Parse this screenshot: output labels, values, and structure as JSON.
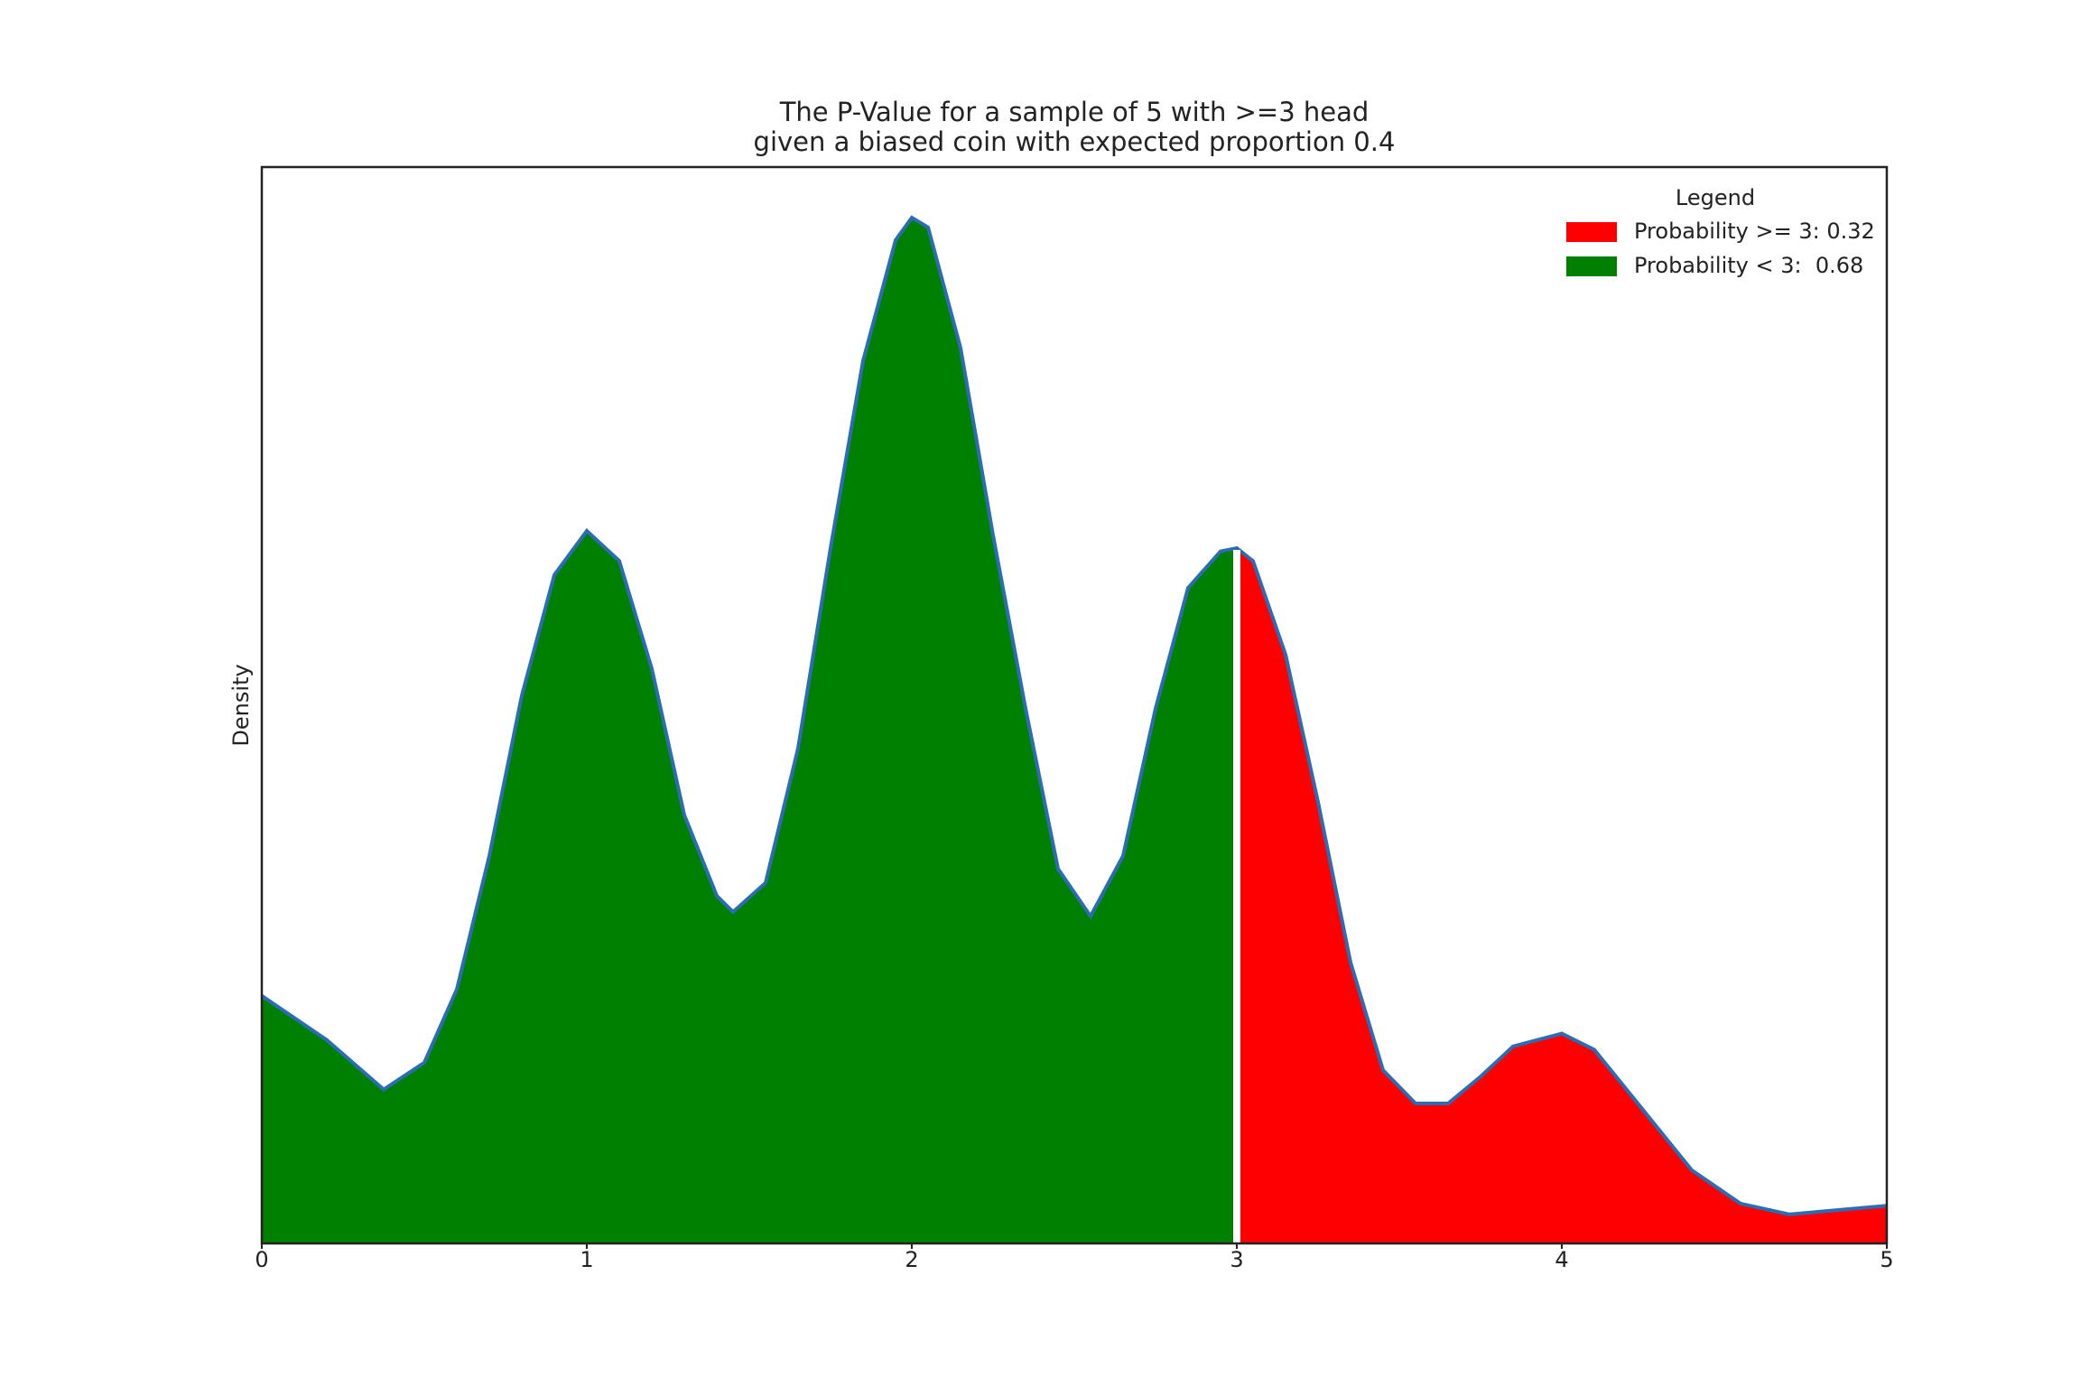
{
  "chart_data": {
    "type": "area",
    "title": [
      "The P-Value for a sample of 5 with >=3 head",
      "given a biased coin with expected proportion 0.4"
    ],
    "y_label": "Density",
    "legend_title": "Legend",
    "legend": "upper right",
    "threshold": 3,
    "line_color": "#2a6db5",
    "series": [
      {
        "name": "Probability >= 3: 0.32",
        "color": "#ff0000"
      },
      {
        "name": "Probability < 3:  0.68",
        "color": "#008000"
      }
    ],
    "x": [
      0,
      0.2,
      0.375,
      0.5,
      0.6,
      0.7,
      0.8,
      0.9,
      1.0,
      1.1,
      1.2,
      1.3,
      1.4,
      1.45,
      1.55,
      1.65,
      1.75,
      1.85,
      1.95,
      2.0,
      2.05,
      2.15,
      2.25,
      2.35,
      2.45,
      2.55,
      2.65,
      2.75,
      2.85,
      2.95,
      3.0,
      3.05,
      3.15,
      3.25,
      3.35,
      3.45,
      3.55,
      3.65,
      3.75,
      3.85,
      4.0,
      4.1,
      4.25,
      4.4,
      4.55,
      4.7,
      4.85,
      5.0
    ],
    "values": [
      0.23,
      0.189,
      0.143,
      0.168,
      0.236,
      0.36,
      0.509,
      0.621,
      0.662,
      0.634,
      0.534,
      0.398,
      0.323,
      0.308,
      0.335,
      0.46,
      0.646,
      0.82,
      0.932,
      0.953,
      0.944,
      0.832,
      0.658,
      0.497,
      0.348,
      0.304,
      0.36,
      0.497,
      0.609,
      0.643,
      0.646,
      0.634,
      0.547,
      0.41,
      0.261,
      0.161,
      0.13,
      0.13,
      0.155,
      0.183,
      0.195,
      0.18,
      0.124,
      0.068,
      0.037,
      0.027,
      0.031,
      0.035
    ],
    "xlim": [
      0,
      5
    ],
    "ylim": [
      0,
      1
    ],
    "xticks": [
      0,
      1,
      2,
      3,
      4,
      5
    ]
  }
}
